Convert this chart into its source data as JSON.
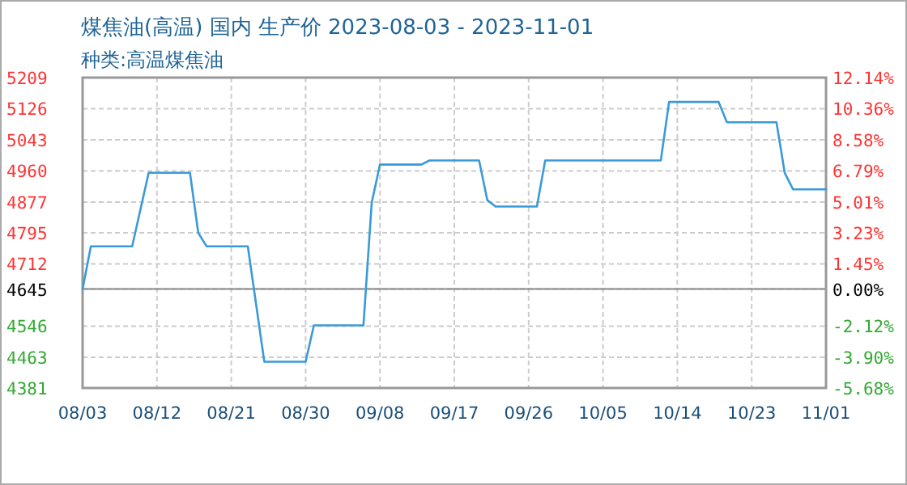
{
  "chart_data": {
    "type": "line",
    "title": "煤焦油(高温) 国内 生产价 2023-08-03 - 2023-11-01",
    "subtitle": "种类:高温煤焦油",
    "x": [
      "2023-08-03",
      "2023-08-04",
      "2023-08-09",
      "2023-08-11",
      "2023-08-16",
      "2023-08-17",
      "2023-08-18",
      "2023-08-23",
      "2023-08-25",
      "2023-08-30",
      "2023-08-31",
      "2023-09-06",
      "2023-09-07",
      "2023-09-08",
      "2023-09-13",
      "2023-09-14",
      "2023-09-20",
      "2023-09-21",
      "2023-09-22",
      "2023-09-27",
      "2023-09-28",
      "2023-10-12",
      "2023-10-13",
      "2023-10-19",
      "2023-10-20",
      "2023-10-26",
      "2023-10-27",
      "2023-10-28",
      "2023-11-01"
    ],
    "series": [
      {
        "color": "#3a9ad9",
        "values": [
          4645,
          4759,
          4759,
          4955,
          4955,
          4795,
          4759,
          4759,
          4451,
          4451,
          4548,
          4548,
          4875,
          4977,
          4977,
          4988,
          4988,
          4882,
          4865,
          4865,
          4988,
          4988,
          5144,
          5144,
          5090,
          5090,
          4955,
          4911,
          4911
        ]
      }
    ],
    "xlim": [
      "2023-08-03",
      "2023-11-01"
    ],
    "xticks": [
      {
        "value": "2023-08-03",
        "label": "08/03"
      },
      {
        "value": "2023-08-12",
        "label": "08/12"
      },
      {
        "value": "2023-08-21",
        "label": "08/21"
      },
      {
        "value": "2023-08-30",
        "label": "08/30"
      },
      {
        "value": "2023-09-08",
        "label": "09/08"
      },
      {
        "value": "2023-09-17",
        "label": "09/17"
      },
      {
        "value": "2023-09-26",
        "label": "09/26"
      },
      {
        "value": "2023-10-05",
        "label": "10/05"
      },
      {
        "value": "2023-10-14",
        "label": "10/14"
      },
      {
        "value": "2023-10-23",
        "label": "10/23"
      },
      {
        "value": "2023-11-01",
        "label": "11/01"
      }
    ],
    "ylim": [
      4381,
      5209
    ],
    "yticks": [
      4381,
      4463,
      4546,
      4645,
      4712,
      4795,
      4877,
      4960,
      5043,
      5126,
      5209
    ],
    "y2lim": [
      -5.68,
      12.14
    ],
    "y2ticks": [
      {
        "value": -5.68,
        "label": "-5.68%"
      },
      {
        "value": -3.9,
        "label": "-3.90%"
      },
      {
        "value": -2.12,
        "label": "-2.12%"
      },
      {
        "value": 0,
        "label": "0.00%"
      },
      {
        "value": 1.45,
        "label": "1.45%"
      },
      {
        "value": 3.23,
        "label": "3.23%"
      },
      {
        "value": 5.01,
        "label": "5.01%"
      },
      {
        "value": 6.79,
        "label": "6.79%"
      },
      {
        "value": 8.58,
        "label": "8.58%"
      },
      {
        "value": 10.36,
        "label": "10.36%"
      },
      {
        "value": 12.14,
        "label": "12.14%"
      }
    ],
    "ref_lines": [
      {
        "axis": "y",
        "value": 4645,
        "color": "#888888"
      }
    ],
    "grid": true,
    "marker": "none",
    "line_style": "solid"
  }
}
